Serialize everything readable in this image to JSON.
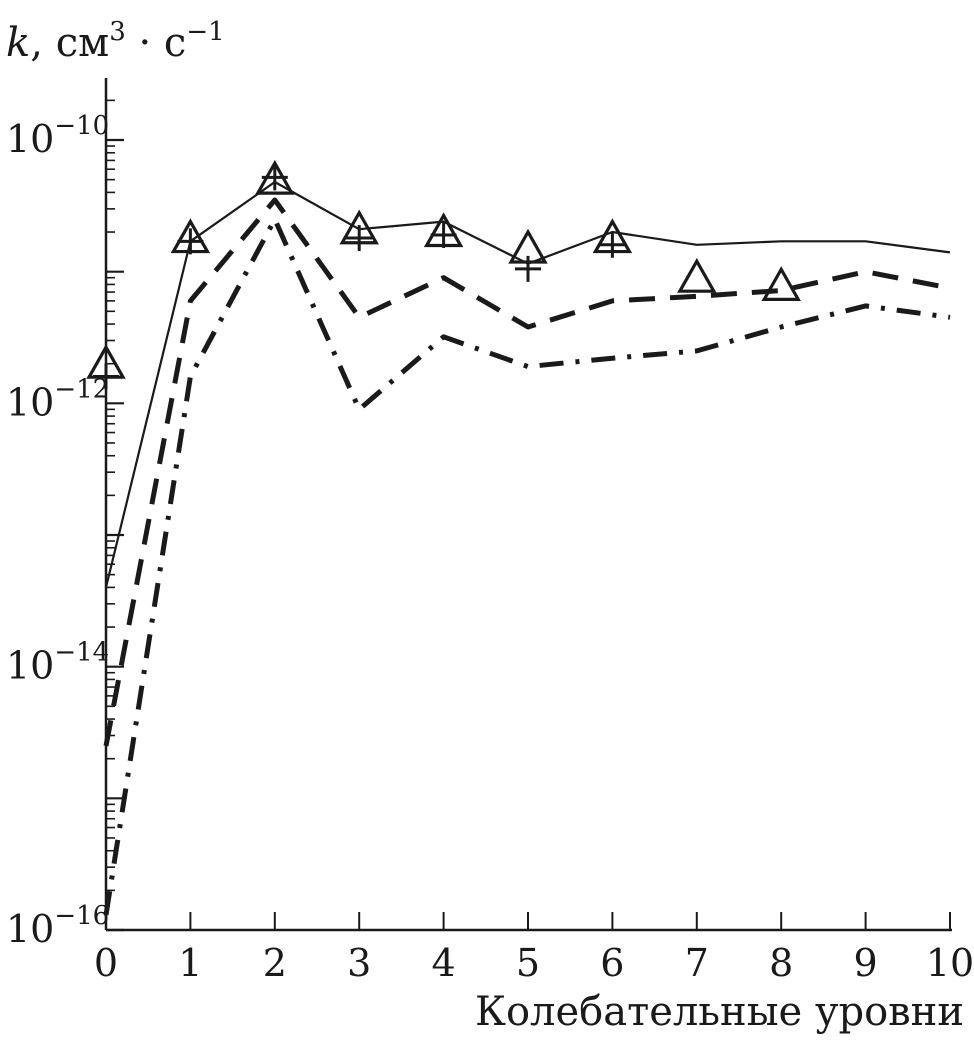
{
  "chart_data": {
    "type": "line",
    "ylabel": {
      "var": "k",
      "sep": ", ",
      "unit_cm": "см",
      "cm_exp": "3",
      "dot": " · ",
      "unit_s": "с",
      "s_exp": "−1"
    },
    "xlabel": "Колебательные уровни",
    "x": [
      0,
      1,
      2,
      3,
      4,
      5,
      6,
      7,
      8,
      9,
      10
    ],
    "x_ticks": [
      "0",
      "1",
      "2",
      "3",
      "4",
      "5",
      "6",
      "7",
      "8",
      "9",
      "10"
    ],
    "y_scale": "log",
    "y_ticks": [
      {
        "value": 1e-16,
        "base": "10",
        "exp": "−16"
      },
      {
        "value": 1e-14,
        "base": "10",
        "exp": "−14"
      },
      {
        "value": 1e-12,
        "base": "10",
        "exp": "−12"
      },
      {
        "value": 1e-10,
        "base": "10",
        "exp": "−10"
      }
    ],
    "xlim": [
      0,
      10
    ],
    "ylim": [
      1e-16,
      5e-10
    ],
    "series": [
      {
        "style": "solid",
        "x": [
          0,
          1,
          2,
          3,
          4,
          5,
          6,
          7,
          8,
          9,
          10
        ],
        "values": [
          4e-14,
          1.7e-11,
          4.8e-11,
          2.1e-11,
          2.4e-11,
          1.15e-11,
          2e-11,
          1.6e-11,
          1.7e-11,
          1.7e-11,
          1.4e-11
        ]
      },
      {
        "style": "dashed",
        "x": [
          0,
          1,
          2,
          3,
          4,
          5,
          6,
          7,
          8,
          9,
          10
        ],
        "values": [
          2.5e-15,
          6e-12,
          3.5e-11,
          4.5e-12,
          9e-12,
          3.8e-12,
          6e-12,
          6.5e-12,
          7.2e-12,
          1e-11,
          7.5e-12
        ]
      },
      {
        "style": "dash-dot",
        "x": [
          0,
          1,
          2,
          3,
          4,
          5,
          6,
          7,
          8,
          9,
          10
        ],
        "values": [
          1.3e-16,
          1.6e-12,
          2.5e-11,
          9e-13,
          3.2e-12,
          1.9e-12,
          2.2e-12,
          2.5e-12,
          3.8e-12,
          5.5e-12,
          4.5e-12
        ]
      },
      {
        "style": "triangle-markers",
        "x": [
          0,
          1,
          2,
          3,
          4,
          5,
          6,
          7,
          8
        ],
        "values": [
          2e-12,
          1.8e-11,
          5e-11,
          2.1e-11,
          2e-11,
          1.5e-11,
          1.8e-11,
          9e-12,
          7.8e-12
        ]
      },
      {
        "style": "plus-markers",
        "x": [
          0,
          1,
          2,
          3,
          4,
          5,
          6
        ],
        "values": [
          1.6e-12,
          1.7e-11,
          5.2e-11,
          1.8e-11,
          1.9e-11,
          1.05e-11,
          1.6e-11
        ]
      }
    ]
  }
}
